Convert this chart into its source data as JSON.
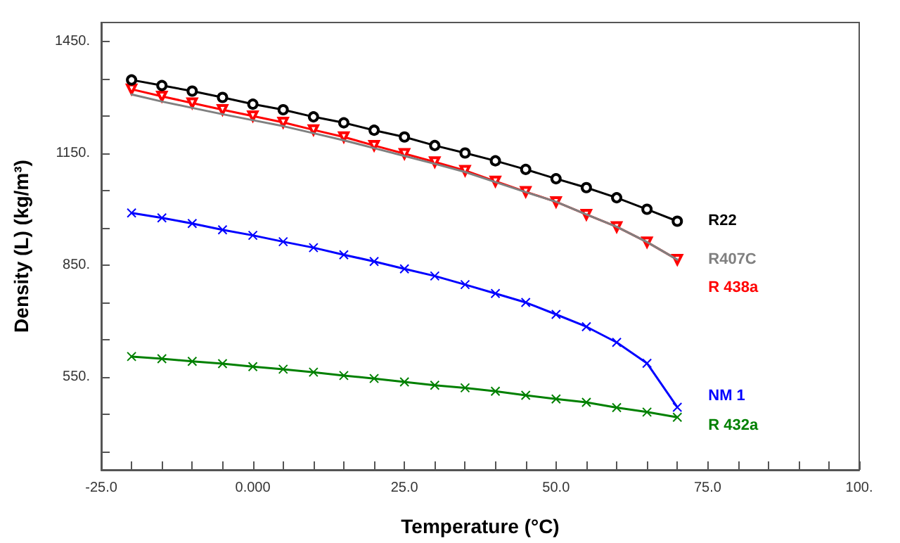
{
  "chart_data": {
    "type": "line",
    "xlabel": "Temperature (°C)",
    "ylabel": "Density (L) (kg/m³)",
    "x": [
      -20,
      -15,
      -10,
      -5,
      0,
      5,
      10,
      15,
      20,
      25,
      30,
      35,
      40,
      45,
      50,
      55,
      60,
      65,
      70
    ],
    "series": [
      {
        "name": "R22",
        "color": "#000000",
        "marker": "circle",
        "values": [
          1346,
          1331,
          1316,
          1299,
          1281,
          1266,
          1247,
          1231,
          1211,
          1193,
          1170,
          1150,
          1129,
          1106,
          1081,
          1057,
          1030,
          999,
          967
        ]
      },
      {
        "name": "R407C",
        "color": "#808080",
        "marker": "none",
        "values": [
          1307,
          1288,
          1271,
          1254,
          1238,
          1222,
          1203,
          1184,
          1163,
          1142,
          1121,
          1099,
          1072,
          1045,
          1019,
          985,
          952,
          911,
          864
        ]
      },
      {
        "name": "R 438a",
        "color": "#ff0000",
        "marker": "triangle",
        "values": [
          1321,
          1302,
          1284,
          1266,
          1249,
          1232,
          1212,
          1193,
          1170,
          1148,
          1126,
          1103,
          1074,
          1046,
          1019,
          985,
          952,
          911,
          864
        ]
      },
      {
        "name": "NM 1",
        "color": "#0000ff",
        "marker": "cross",
        "values": [
          989,
          976,
          961,
          944,
          929,
          912,
          896,
          877,
          859,
          839,
          820,
          797,
          773,
          749,
          717,
          684,
          642,
          586,
          468
        ]
      },
      {
        "name": "R 432a",
        "color": "#008000",
        "marker": "cross",
        "values": [
          604,
          598,
          591,
          585,
          577,
          570,
          562,
          553,
          545,
          536,
          527,
          520,
          511,
          500,
          490,
          481,
          467,
          455,
          441
        ]
      }
    ],
    "xlim": [
      -25,
      100
    ],
    "xticks": [
      {
        "value": -25,
        "label": "-25.0"
      },
      {
        "value": -20,
        "label": null
      },
      {
        "value": -15,
        "label": null
      },
      {
        "value": -10,
        "label": null
      },
      {
        "value": -5,
        "label": null
      },
      {
        "value": 0,
        "label": "0.000"
      },
      {
        "value": 5,
        "label": null
      },
      {
        "value": 10,
        "label": null
      },
      {
        "value": 15,
        "label": null
      },
      {
        "value": 20,
        "label": null
      },
      {
        "value": 25,
        "label": "25.0"
      },
      {
        "value": 30,
        "label": null
      },
      {
        "value": 35,
        "label": null
      },
      {
        "value": 40,
        "label": null
      },
      {
        "value": 45,
        "label": null
      },
      {
        "value": 50,
        "label": "50.0"
      },
      {
        "value": 55,
        "label": null
      },
      {
        "value": 60,
        "label": null
      },
      {
        "value": 65,
        "label": null
      },
      {
        "value": 70,
        "label": null
      },
      {
        "value": 75,
        "label": "75.0"
      },
      {
        "value": 80,
        "label": null
      },
      {
        "value": 85,
        "label": null
      },
      {
        "value": 90,
        "label": null
      },
      {
        "value": 95,
        "label": null
      },
      {
        "value": 100,
        "label": "100."
      }
    ],
    "ylim": [
      300,
      1500
    ],
    "yticks": [
      {
        "value": 350,
        "label": null
      },
      {
        "value": 450,
        "label": null
      },
      {
        "value": 550,
        "label": "550."
      },
      {
        "value": 650,
        "label": null
      },
      {
        "value": 750,
        "label": null
      },
      {
        "value": 850,
        "label": "850."
      },
      {
        "value": 950,
        "label": null
      },
      {
        "value": 1050,
        "label": null
      },
      {
        "value": 1150,
        "label": "1150."
      },
      {
        "value": 1250,
        "label": null
      },
      {
        "value": 1350,
        "label": null
      },
      {
        "value": 1450,
        "label": "1450."
      }
    ],
    "grid": false,
    "legend": false
  }
}
